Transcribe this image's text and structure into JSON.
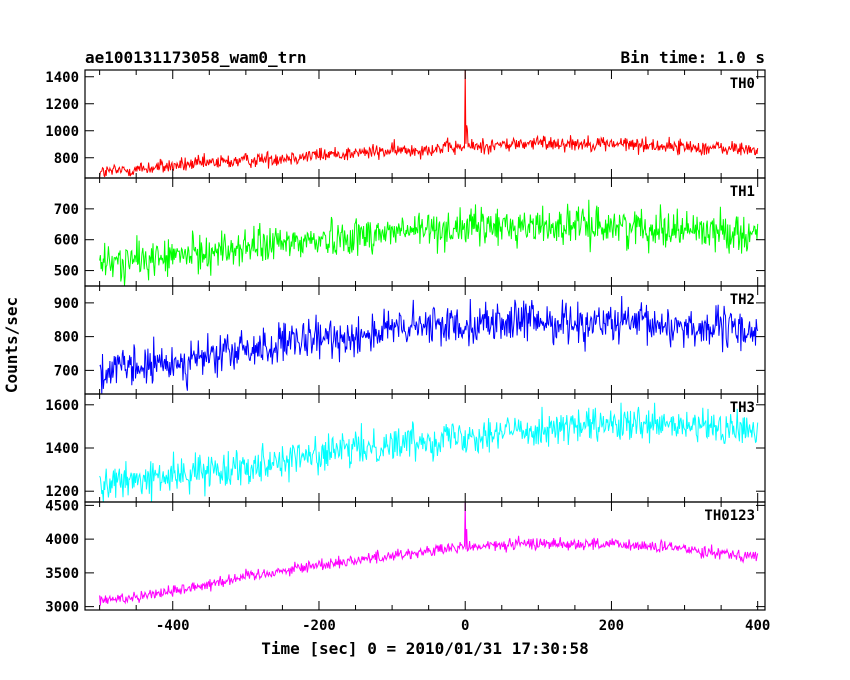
{
  "chart_data": {
    "type": "line",
    "title": "ae100131173058_wam0_trn",
    "subtitle": "Bin time: 1.0 s",
    "xlabel": "Time [sec] 0 = 2010/01/31 17:30:58",
    "ylabel": "Counts/sec",
    "xlim": [
      -520,
      410
    ],
    "x_ticks": [
      -400,
      -200,
      0,
      200,
      400
    ],
    "grid": false,
    "panels": [
      {
        "name": "TH0",
        "color": "#ff0000",
        "ylim": [
          650,
          1450
        ],
        "y_ticks": [
          800,
          1000,
          1200,
          1400
        ],
        "trend": [
          [
            -500,
            690
          ],
          [
            -400,
            740
          ],
          [
            -300,
            780
          ],
          [
            -200,
            820
          ],
          [
            -100,
            850
          ],
          [
            0,
            880
          ],
          [
            100,
            910
          ],
          [
            200,
            905
          ],
          [
            300,
            880
          ],
          [
            400,
            860
          ]
        ],
        "noise": 28,
        "spikes": [
          [
            0,
            1450
          ],
          [
            2,
            1040
          ],
          [
            3,
            1010
          ]
        ]
      },
      {
        "name": "TH1",
        "color": "#00ff00",
        "ylim": [
          450,
          800
        ],
        "y_ticks": [
          500,
          600,
          700
        ],
        "trend": [
          [
            -500,
            520
          ],
          [
            -400,
            545
          ],
          [
            -300,
            575
          ],
          [
            -200,
            600
          ],
          [
            -100,
            625
          ],
          [
            0,
            640
          ],
          [
            100,
            645
          ],
          [
            200,
            645
          ],
          [
            300,
            635
          ],
          [
            400,
            620
          ]
        ],
        "noise": 30,
        "spikes": []
      },
      {
        "name": "TH2",
        "color": "#0000ff",
        "ylim": [
          630,
          950
        ],
        "y_ticks": [
          700,
          800,
          900
        ],
        "trend": [
          [
            -500,
            695
          ],
          [
            -400,
            720
          ],
          [
            -300,
            760
          ],
          [
            -200,
            790
          ],
          [
            -100,
            820
          ],
          [
            0,
            840
          ],
          [
            100,
            845
          ],
          [
            200,
            840
          ],
          [
            300,
            830
          ],
          [
            400,
            815
          ]
        ],
        "noise": 30,
        "spikes": []
      },
      {
        "name": "TH3",
        "color": "#00ffff",
        "ylim": [
          1150,
          1650
        ],
        "y_ticks": [
          1200,
          1400,
          1600
        ],
        "trend": [
          [
            -500,
            1230
          ],
          [
            -400,
            1270
          ],
          [
            -300,
            1320
          ],
          [
            -200,
            1370
          ],
          [
            -100,
            1420
          ],
          [
            0,
            1460
          ],
          [
            100,
            1490
          ],
          [
            200,
            1505
          ],
          [
            300,
            1500
          ],
          [
            400,
            1480
          ]
        ],
        "noise": 40,
        "spikes": []
      },
      {
        "name": "TH0123",
        "color": "#ff00ff",
        "ylim": [
          2950,
          4550
        ],
        "y_ticks": [
          3000,
          3500,
          4000,
          4500
        ],
        "trend": [
          [
            -500,
            3080
          ],
          [
            -400,
            3230
          ],
          [
            -300,
            3450
          ],
          [
            -200,
            3620
          ],
          [
            -100,
            3760
          ],
          [
            0,
            3880
          ],
          [
            100,
            3940
          ],
          [
            200,
            3920
          ],
          [
            300,
            3860
          ],
          [
            400,
            3740
          ]
        ],
        "noise": 45,
        "spikes": [
          [
            0,
            4550
          ],
          [
            2,
            4150
          ]
        ]
      }
    ]
  }
}
